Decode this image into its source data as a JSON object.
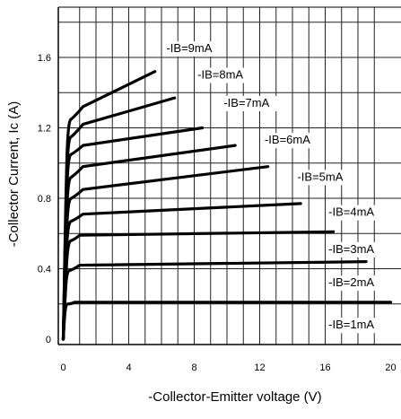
{
  "chart_data": {
    "type": "line",
    "xlabel": "-Collector-Emitter voltage (V)",
    "ylabel": "-Collector Current, Ic (A)",
    "xlim": [
      0,
      20
    ],
    "ylim": [
      0,
      1.8
    ],
    "x_ticks": [
      "0",
      "4",
      "8",
      "12",
      "16",
      "20"
    ],
    "y_ticks": [
      "0",
      "0.4",
      "0.8",
      "1.2",
      "1.6"
    ],
    "grid": true,
    "series": [
      {
        "name": "-IB=1mA",
        "points": [
          [
            0,
            0.0
          ],
          [
            0.1,
            0.15
          ],
          [
            0.3,
            0.2
          ],
          [
            0.7,
            0.21
          ],
          [
            20,
            0.21
          ]
        ]
      },
      {
        "name": "-IB=2mA",
        "points": [
          [
            0,
            0.0
          ],
          [
            0.15,
            0.3
          ],
          [
            0.4,
            0.39
          ],
          [
            1.0,
            0.42
          ],
          [
            18.5,
            0.44
          ]
        ]
      },
      {
        "name": "-IB=3mA",
        "points": [
          [
            0,
            0.0
          ],
          [
            0.2,
            0.42
          ],
          [
            0.5,
            0.56
          ],
          [
            1.0,
            0.59
          ],
          [
            16.5,
            0.61
          ]
        ]
      },
      {
        "name": "-IB=4mA",
        "points": [
          [
            0,
            0.0
          ],
          [
            0.2,
            0.5
          ],
          [
            0.5,
            0.67
          ],
          [
            1.2,
            0.71
          ],
          [
            14.5,
            0.77
          ]
        ]
      },
      {
        "name": "-IB=5mA",
        "points": [
          [
            0,
            0.0
          ],
          [
            0.2,
            0.6
          ],
          [
            0.5,
            0.8
          ],
          [
            1.2,
            0.85
          ],
          [
            12.5,
            0.98
          ]
        ]
      },
      {
        "name": "-IB=6mA",
        "points": [
          [
            0,
            0.0
          ],
          [
            0.2,
            0.7
          ],
          [
            0.5,
            0.92
          ],
          [
            1.2,
            0.98
          ],
          [
            10.5,
            1.1
          ]
        ]
      },
      {
        "name": "-IB=7mA",
        "points": [
          [
            0,
            0.0
          ],
          [
            0.2,
            0.82
          ],
          [
            0.5,
            1.05
          ],
          [
            1.2,
            1.1
          ],
          [
            8.5,
            1.2
          ]
        ]
      },
      {
        "name": "-IB=8mA",
        "points": [
          [
            0,
            0.0
          ],
          [
            0.2,
            0.92
          ],
          [
            0.5,
            1.15
          ],
          [
            1.2,
            1.22
          ],
          [
            6.8,
            1.37
          ]
        ]
      },
      {
        "name": "-IB=9mA",
        "points": [
          [
            0,
            0.0
          ],
          [
            0.2,
            1.0
          ],
          [
            0.5,
            1.25
          ],
          [
            1.2,
            1.32
          ],
          [
            5.6,
            1.52
          ]
        ]
      }
    ],
    "labels": [
      {
        "text": "-IB=9mA",
        "x": 6.3,
        "y": 1.63
      },
      {
        "text": "-IB=8mA",
        "x": 8.2,
        "y": 1.48
      },
      {
        "text": "-IB=7mA",
        "x": 9.8,
        "y": 1.32
      },
      {
        "text": "-IB=6mA",
        "x": 12.3,
        "y": 1.11
      },
      {
        "text": "-IB=5mA",
        "x": 14.3,
        "y": 0.9
      },
      {
        "text": "-IB=4mA",
        "x": 16.2,
        "y": 0.7
      },
      {
        "text": "-IB=3mA",
        "x": 16.2,
        "y": 0.49
      },
      {
        "text": "-IB=2mA",
        "x": 16.2,
        "y": 0.3
      },
      {
        "text": "-IB=1mA",
        "x": 16.2,
        "y": 0.06
      }
    ]
  }
}
